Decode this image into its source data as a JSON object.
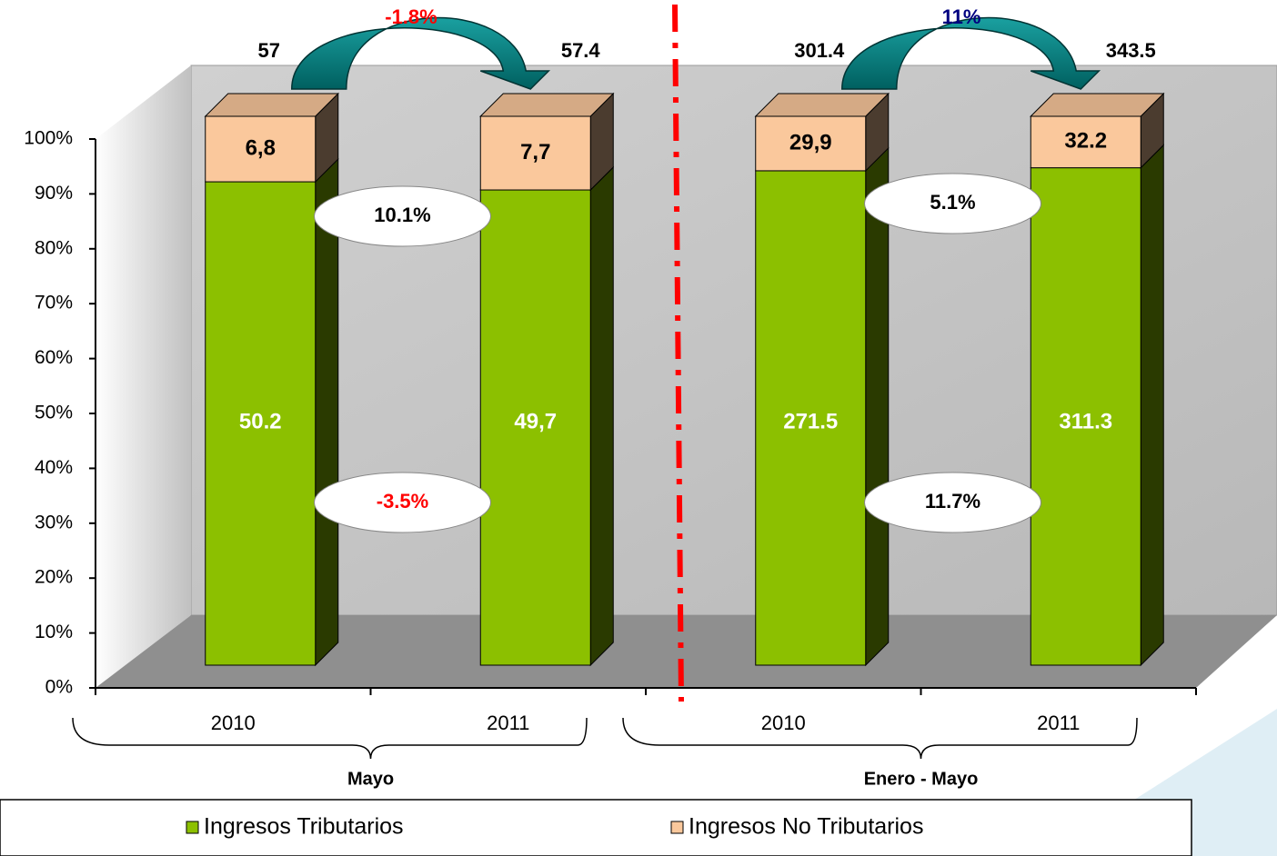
{
  "chart_data": {
    "type": "bar",
    "stacked_percent": true,
    "categories": [
      "2010",
      "2011",
      "2010",
      "2011"
    ],
    "groups": [
      "Mayo",
      "Enero - Mayo"
    ],
    "series": [
      {
        "name": "Ingresos Tributarios",
        "color": "#8cc000",
        "values": [
          50.2,
          49.7,
          271.5,
          311.3
        ],
        "value_labels": [
          "50.2",
          "49,7",
          "271.5",
          "311.3"
        ],
        "growth": [
          {
            "text": "-3.5%",
            "color": "#ff0000"
          },
          {
            "text": "11.7%",
            "color": "#000000"
          }
        ]
      },
      {
        "name": "Ingresos No Tributarios",
        "color": "#fac89c",
        "values": [
          6.8,
          7.7,
          29.9,
          32.2
        ],
        "value_labels": [
          "6,8",
          "7,7",
          "29,9",
          "32.2"
        ],
        "growth": [
          {
            "text": "10.1%",
            "color": "#000000"
          },
          {
            "text": "5.1%",
            "color": "#000000"
          }
        ]
      }
    ],
    "totals": [
      57,
      57.4,
      301.4,
      343.5
    ],
    "total_growth": [
      {
        "text": "-1.8%",
        "color": "#ff0000"
      },
      {
        "text": "11%",
        "color": "#000080"
      }
    ],
    "ylim": [
      0,
      100
    ],
    "yticks": [
      {
        "value": 0,
        "label": "0%"
      },
      {
        "value": 10,
        "label": "10%"
      },
      {
        "value": 20,
        "label": "20%"
      },
      {
        "value": 30,
        "label": "30%"
      },
      {
        "value": 40,
        "label": "40%"
      },
      {
        "value": 50,
        "label": "50%"
      },
      {
        "value": 60,
        "label": "60%"
      },
      {
        "value": 70,
        "label": "70%"
      },
      {
        "value": 80,
        "label": "80%"
      },
      {
        "value": 90,
        "label": "90%"
      },
      {
        "value": 100,
        "label": "100%"
      }
    ]
  }
}
